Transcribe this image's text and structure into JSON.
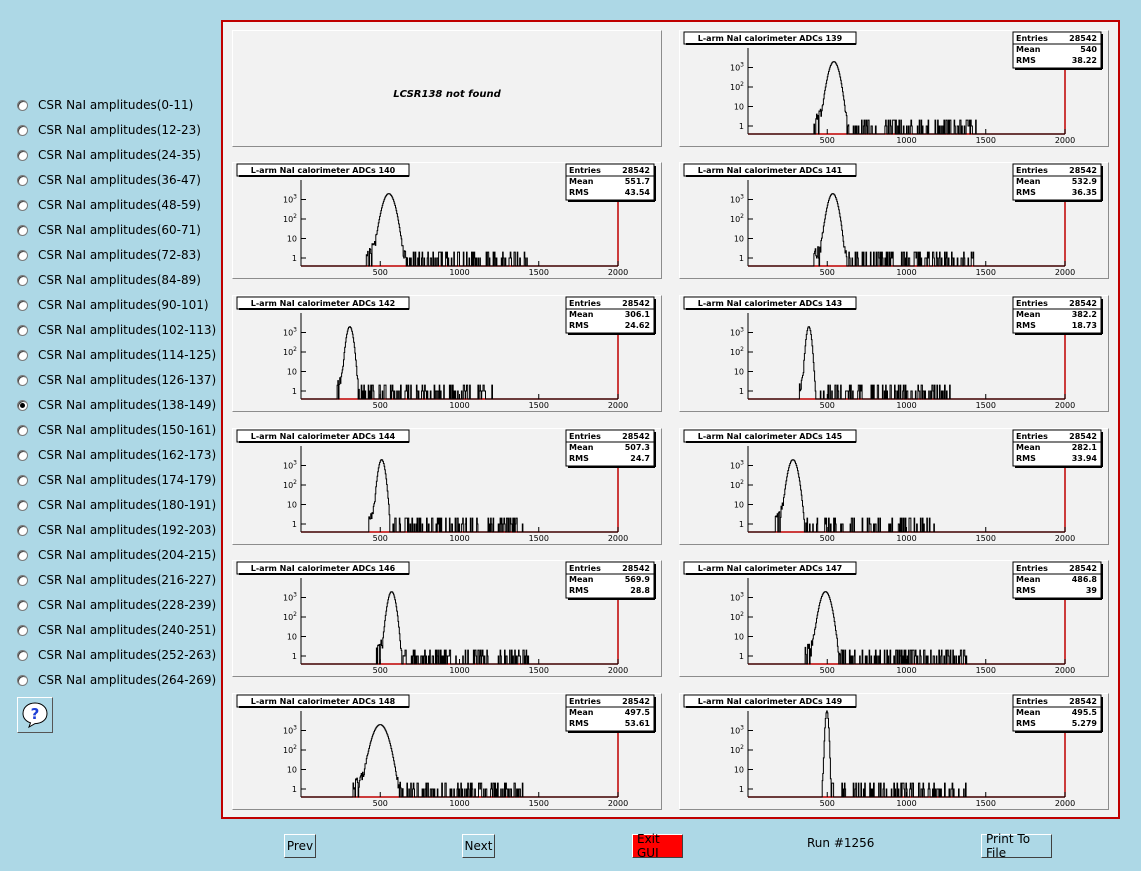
{
  "sidebar": {
    "selected_index": 12,
    "items": [
      {
        "label": "CSR NaI amplitudes(0-11)"
      },
      {
        "label": "CSR NaI amplitudes(12-23)"
      },
      {
        "label": "CSR NaI amplitudes(24-35)"
      },
      {
        "label": "CSR NaI amplitudes(36-47)"
      },
      {
        "label": "CSR NaI amplitudes(48-59)"
      },
      {
        "label": "CSR NaI amplitudes(60-71)"
      },
      {
        "label": "CSR NaI amplitudes(72-83)"
      },
      {
        "label": "CSR NaI amplitudes(84-89)"
      },
      {
        "label": "CSR NaI amplitudes(90-101)"
      },
      {
        "label": "CSR NaI amplitudes(102-113)"
      },
      {
        "label": "CSR NaI amplitudes(114-125)"
      },
      {
        "label": "CSR NaI amplitudes(126-137)"
      },
      {
        "label": "CSR NaI amplitudes(138-149)"
      },
      {
        "label": "CSR NaI amplitudes(150-161)"
      },
      {
        "label": "CSR NaI amplitudes(162-173)"
      },
      {
        "label": "CSR NaI amplitudes(174-179)"
      },
      {
        "label": "CSR NaI amplitudes(180-191)"
      },
      {
        "label": "CSR NaI amplitudes(192-203)"
      },
      {
        "label": "CSR NaI amplitudes(204-215)"
      },
      {
        "label": "CSR NaI amplitudes(216-227)"
      },
      {
        "label": "CSR NaI amplitudes(228-239)"
      },
      {
        "label": "CSR NaI amplitudes(240-251)"
      },
      {
        "label": "CSR NaI amplitudes(252-263)"
      },
      {
        "label": "CSR NaI amplitudes(264-269)"
      }
    ],
    "help_icon": "question-mark-icon"
  },
  "canvas": {
    "missing_text": "LCSR138 not found"
  },
  "stats_labels": {
    "entries": "Entries",
    "mean": "Mean",
    "rms": "RMS"
  },
  "colors": {
    "background": "#add8e6",
    "frame_border": "#c00000",
    "axis": "#c00000",
    "pad_fill": "#f2f2f2",
    "exit_button": "#ff0000"
  },
  "chart_data": [
    {
      "type": "histogram",
      "title": "L-arm NaI calorimeter ADCs 139",
      "entries": "28542",
      "mean": "540",
      "rms": "38.22",
      "x_ticks": [
        "500",
        "1000",
        "1500",
        "2000"
      ],
      "y_ticks": [
        "1",
        "10",
        "10^2",
        "10^3"
      ],
      "y_scale": "log",
      "xlim": [
        0,
        2000
      ],
      "peak_x": 540,
      "peak_count": 2000
    },
    {
      "type": "histogram",
      "title": "L-arm NaI calorimeter ADCs 140",
      "entries": "28542",
      "mean": "551.7",
      "rms": "43.54",
      "x_ticks": [
        "500",
        "1000",
        "1500",
        "2000"
      ],
      "y_ticks": [
        "1",
        "10",
        "10^2",
        "10^3"
      ],
      "y_scale": "log",
      "xlim": [
        0,
        2000
      ],
      "peak_x": 552,
      "peak_count": 2000
    },
    {
      "type": "histogram",
      "title": "L-arm NaI calorimeter ADCs 141",
      "entries": "28542",
      "mean": "532.9",
      "rms": "36.35",
      "x_ticks": [
        "500",
        "1000",
        "1500",
        "2000"
      ],
      "y_ticks": [
        "1",
        "10",
        "10^2",
        "10^3"
      ],
      "y_scale": "log",
      "xlim": [
        0,
        2000
      ],
      "peak_x": 533,
      "peak_count": 2000
    },
    {
      "type": "histogram",
      "title": "L-arm NaI calorimeter ADCs 142",
      "entries": "28542",
      "mean": "306.1",
      "rms": "24.62",
      "x_ticks": [
        "500",
        "1000",
        "1500",
        "2000"
      ],
      "y_ticks": [
        "1",
        "10",
        "10^2",
        "10^3"
      ],
      "y_scale": "log",
      "xlim": [
        0,
        2000
      ],
      "peak_x": 306,
      "peak_count": 2000
    },
    {
      "type": "histogram",
      "title": "L-arm NaI calorimeter ADCs 143",
      "entries": "28542",
      "mean": "382.2",
      "rms": "18.73",
      "x_ticks": [
        "500",
        "1000",
        "1500",
        "2000"
      ],
      "y_ticks": [
        "1",
        "10",
        "10^2",
        "10^3"
      ],
      "y_scale": "log",
      "xlim": [
        0,
        2000
      ],
      "peak_x": 382,
      "peak_count": 2000
    },
    {
      "type": "histogram",
      "title": "L-arm NaI calorimeter ADCs 144",
      "entries": "28542",
      "mean": "507.3",
      "rms": "24.7",
      "x_ticks": [
        "500",
        "1000",
        "1500",
        "2000"
      ],
      "y_ticks": [
        "1",
        "10",
        "10^2",
        "10^3"
      ],
      "y_scale": "log",
      "xlim": [
        0,
        2000
      ],
      "peak_x": 507,
      "peak_count": 2000
    },
    {
      "type": "histogram",
      "title": "L-arm NaI calorimeter ADCs 145",
      "entries": "28542",
      "mean": "282.1",
      "rms": "33.94",
      "x_ticks": [
        "500",
        "1000",
        "1500",
        "2000"
      ],
      "y_ticks": [
        "1",
        "10",
        "10^2",
        "10^3"
      ],
      "y_scale": "log",
      "xlim": [
        0,
        2000
      ],
      "peak_x": 282,
      "peak_count": 2000
    },
    {
      "type": "histogram",
      "title": "L-arm NaI calorimeter ADCs 146",
      "entries": "28542",
      "mean": "569.9",
      "rms": "28.8",
      "x_ticks": [
        "500",
        "1000",
        "1500",
        "2000"
      ],
      "y_ticks": [
        "1",
        "10",
        "10^2",
        "10^3"
      ],
      "y_scale": "log",
      "xlim": [
        0,
        2000
      ],
      "peak_x": 570,
      "peak_count": 2000
    },
    {
      "type": "histogram",
      "title": "L-arm NaI calorimeter ADCs 147",
      "entries": "28542",
      "mean": "486.8",
      "rms": "39",
      "x_ticks": [
        "500",
        "1000",
        "1500",
        "2000"
      ],
      "y_ticks": [
        "1",
        "10",
        "10^2",
        "10^3"
      ],
      "y_scale": "log",
      "xlim": [
        0,
        2000
      ],
      "peak_x": 487,
      "peak_count": 2000
    },
    {
      "type": "histogram",
      "title": "L-arm NaI calorimeter ADCs 148",
      "entries": "28542",
      "mean": "497.5",
      "rms": "53.61",
      "x_ticks": [
        "500",
        "1000",
        "1500",
        "2000"
      ],
      "y_ticks": [
        "1",
        "10",
        "10^2",
        "10^3"
      ],
      "y_scale": "log",
      "xlim": [
        0,
        2000
      ],
      "peak_x": 498,
      "peak_count": 2000
    },
    {
      "type": "histogram",
      "title": "L-arm NaI calorimeter ADCs 149",
      "entries": "28542",
      "mean": "495.5",
      "rms": "5.279",
      "x_ticks": [
        "500",
        "1000",
        "1500",
        "2000"
      ],
      "y_ticks": [
        "1",
        "10",
        "10^2",
        "10^3"
      ],
      "y_scale": "log",
      "xlim": [
        0,
        2000
      ],
      "peak_x": 496,
      "peak_count": 10000
    }
  ],
  "buttons": {
    "prev": "Prev",
    "next": "Next",
    "exit": "Exit GUI",
    "print": "Print To File"
  },
  "run_label": "Run #1256"
}
